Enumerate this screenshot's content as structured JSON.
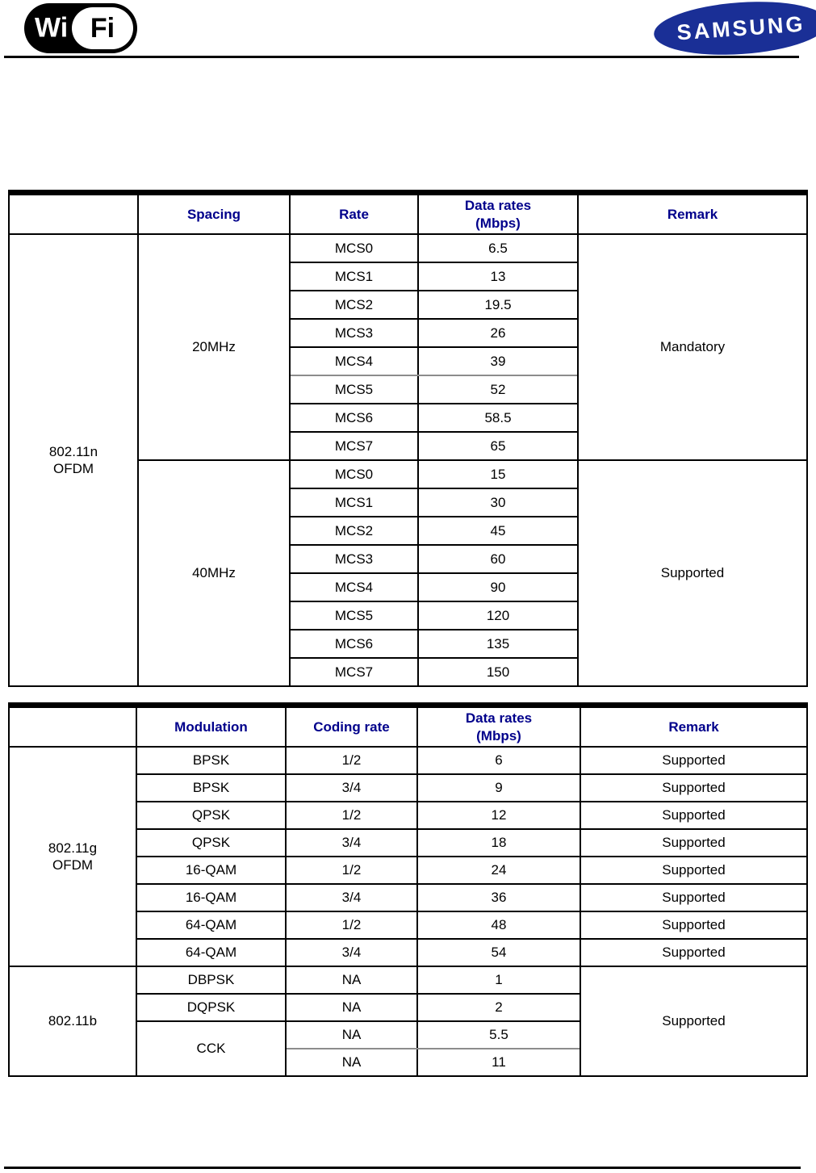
{
  "header": {
    "wifi_logo": {
      "wi": "Wi",
      "fi": "Fi"
    },
    "samsung_logo": {
      "text": "SAMSUNG"
    }
  },
  "colors": {
    "header_text": "#00008b",
    "samsung_blue": "#1a2f96"
  },
  "table_80211n": {
    "col_headers": [
      "Spacing",
      "Rate",
      "Data rates\n(Mbps)",
      "Remark"
    ],
    "row_header": "802.11n\nOFDM",
    "groups": [
      {
        "spacing": "20MHz",
        "remark": "Mandatory",
        "rows": [
          {
            "rate": "MCS0",
            "mbps": "6.5"
          },
          {
            "rate": "MCS1",
            "mbps": "13"
          },
          {
            "rate": "MCS2",
            "mbps": "19.5"
          },
          {
            "rate": "MCS3",
            "mbps": "26"
          },
          {
            "rate": "MCS4",
            "mbps": "39",
            "divider": "gray"
          },
          {
            "rate": "MCS5",
            "mbps": "52"
          },
          {
            "rate": "MCS6",
            "mbps": "58.5"
          },
          {
            "rate": "MCS7",
            "mbps": "65"
          }
        ]
      },
      {
        "spacing": "40MHz",
        "remark": "Supported",
        "rows": [
          {
            "rate": "MCS0",
            "mbps": "15"
          },
          {
            "rate": "MCS1",
            "mbps": "30"
          },
          {
            "rate": "MCS2",
            "mbps": "45"
          },
          {
            "rate": "MCS3",
            "mbps": "60"
          },
          {
            "rate": "MCS4",
            "mbps": "90"
          },
          {
            "rate": "MCS5",
            "mbps": "120"
          },
          {
            "rate": "MCS6",
            "mbps": "135"
          },
          {
            "rate": "MCS7",
            "mbps": "150"
          }
        ]
      }
    ]
  },
  "table_80211g_b": {
    "col_headers": [
      "Modulation",
      "Coding rate",
      "Data rates\n(Mbps)",
      "Remark"
    ],
    "sections": [
      {
        "protocol": "802.11g\nOFDM",
        "remark_merged": false,
        "rows": [
          {
            "modulation": "BPSK",
            "coding_rate": "1/2",
            "mbps": "6",
            "remark": "Supported"
          },
          {
            "modulation": "BPSK",
            "coding_rate": "3/4",
            "mbps": "9",
            "remark": "Supported"
          },
          {
            "modulation": "QPSK",
            "coding_rate": "1/2",
            "mbps": "12",
            "remark": "Supported"
          },
          {
            "modulation": "QPSK",
            "coding_rate": "3/4",
            "mbps": "18",
            "remark": "Supported"
          },
          {
            "modulation": "16-QAM",
            "coding_rate": "1/2",
            "mbps": "24",
            "remark": "Supported"
          },
          {
            "modulation": "16-QAM",
            "coding_rate": "3/4",
            "mbps": "36",
            "remark": "Supported"
          },
          {
            "modulation": "64-QAM",
            "coding_rate": "1/2",
            "mbps": "48",
            "remark": "Supported"
          },
          {
            "modulation": "64-QAM",
            "coding_rate": "3/4",
            "mbps": "54",
            "remark": "Supported"
          }
        ]
      },
      {
        "protocol": "802.11b",
        "remark_merged": true,
        "remark": "Supported",
        "rows": [
          {
            "modulation": "DBPSK",
            "coding_rate": "NA",
            "mbps": "1"
          },
          {
            "modulation": "DQPSK",
            "coding_rate": "NA",
            "mbps": "2"
          },
          {
            "modulation": "CCK",
            "modulation_rowspan": 2,
            "coding_rate": "NA",
            "mbps": "5.5",
            "divider": "gray"
          },
          {
            "coding_rate": "NA",
            "mbps": "11"
          }
        ]
      }
    ]
  }
}
